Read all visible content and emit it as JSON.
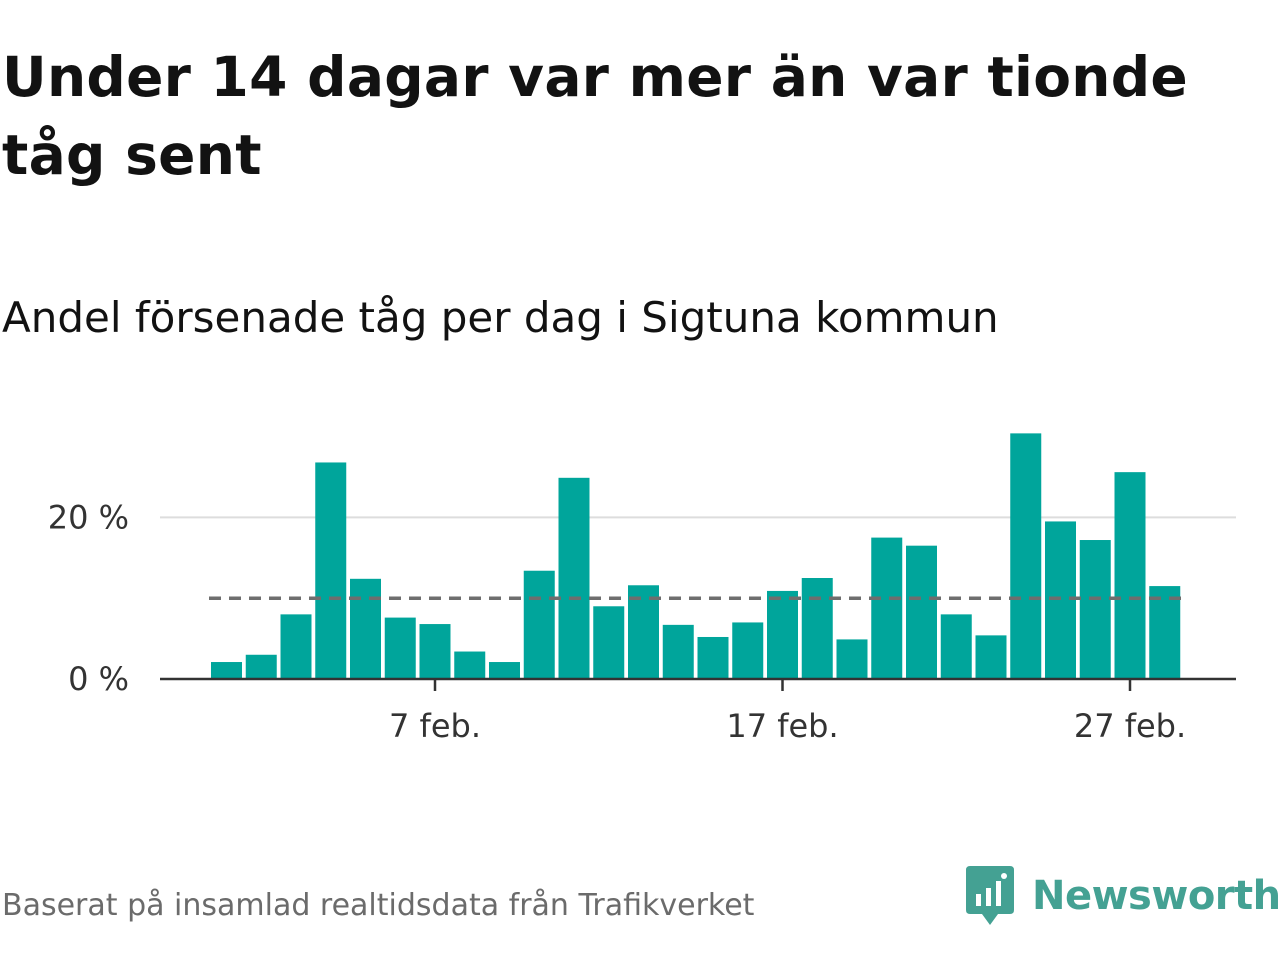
{
  "header": {
    "title": "Under 14 dagar var mer än var tionde tåg sent",
    "subtitle": "Andel försenade tåg per dag i Sigtuna kommun"
  },
  "footer": {
    "source": "Baserat på insamlad realtidsdata från Trafikverket",
    "brand": "Newsworthy"
  },
  "colors": {
    "bar": "#00a59b",
    "reference_line": "#6e6e6e",
    "gridline": "#dddddd",
    "axis": "#333333",
    "brand": "#44a193"
  },
  "icons": {
    "brand_logo": "newsworthy-logo-icon"
  },
  "chart_data": {
    "type": "bar",
    "x": [
      "2024-02-01",
      "2024-02-02",
      "2024-02-03",
      "2024-02-04",
      "2024-02-05",
      "2024-02-06",
      "2024-02-07",
      "2024-02-08",
      "2024-02-09",
      "2024-02-10",
      "2024-02-11",
      "2024-02-12",
      "2024-02-13",
      "2024-02-14",
      "2024-02-15",
      "2024-02-16",
      "2024-02-17",
      "2024-02-18",
      "2024-02-19",
      "2024-02-20",
      "2024-02-21",
      "2024-02-22",
      "2024-02-23",
      "2024-02-24",
      "2024-02-25",
      "2024-02-26",
      "2024-02-27",
      "2024-02-28"
    ],
    "values": [
      2.1,
      3.0,
      8.0,
      26.8,
      12.4,
      7.6,
      6.8,
      3.4,
      2.1,
      13.4,
      24.9,
      9.0,
      11.6,
      6.7,
      5.2,
      7.0,
      10.9,
      12.5,
      4.9,
      17.5,
      16.5,
      8.0,
      5.4,
      30.4,
      19.5,
      17.2,
      25.6,
      11.5
    ],
    "reference_line": 10,
    "ylim": [
      0,
      32
    ],
    "yticks": [
      0,
      20
    ],
    "ytick_labels": [
      "0 %",
      "20 %"
    ],
    "xticks": [
      {
        "date": "2024-02-07",
        "label": "7 feb."
      },
      {
        "date": "2024-02-17",
        "label": "17 feb."
      },
      {
        "date": "2024-02-27",
        "label": "27 feb."
      }
    ],
    "grid": true,
    "legend": false
  }
}
